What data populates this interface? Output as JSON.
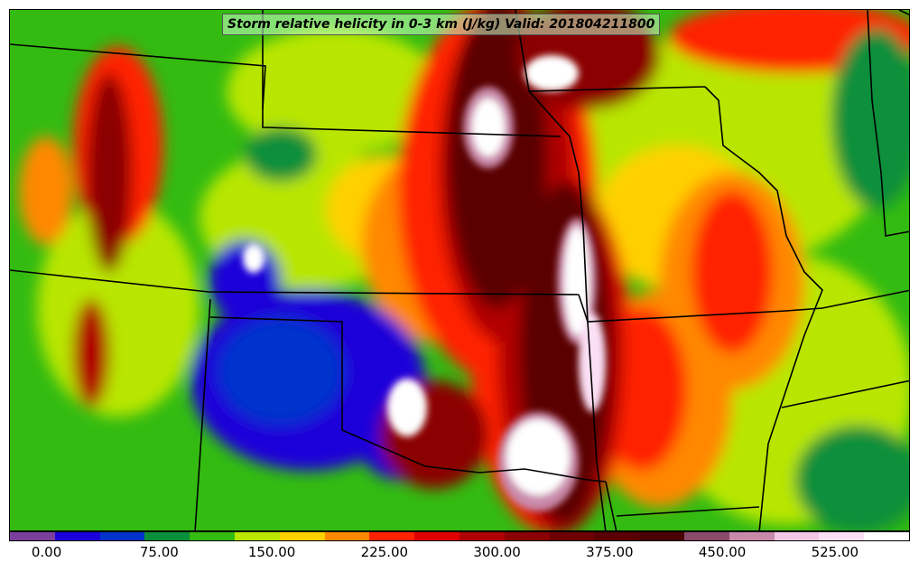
{
  "title": "Storm relative helicity in 0-3 km (J/kg) Valid: 201804211800",
  "colorbar": {
    "colors": [
      "#7b3f9e",
      "#1a00d9",
      "#0033cc",
      "#0a8f3a",
      "#33bb11",
      "#b8e600",
      "#ffd000",
      "#ff8800",
      "#ff2200",
      "#e00000",
      "#b00000",
      "#8b0000",
      "#6e0000",
      "#5a0000",
      "#4a0000",
      "#8a4a6a",
      "#c98aaa",
      "#f4c6e6",
      "#fbe0f5",
      "#ffffff"
    ],
    "tick_values": [
      0,
      75,
      150,
      225,
      300,
      375,
      450,
      525
    ],
    "tick_labels": [
      "0.00",
      "75.00",
      "150.00",
      "225.00",
      "300.00",
      "375.00",
      "450.00",
      "525.00"
    ],
    "range": [
      -25,
      575
    ]
  },
  "map": {
    "field": "Storm relative helicity 0-3 km",
    "units": "J/kg",
    "valid": "201804211800"
  }
}
